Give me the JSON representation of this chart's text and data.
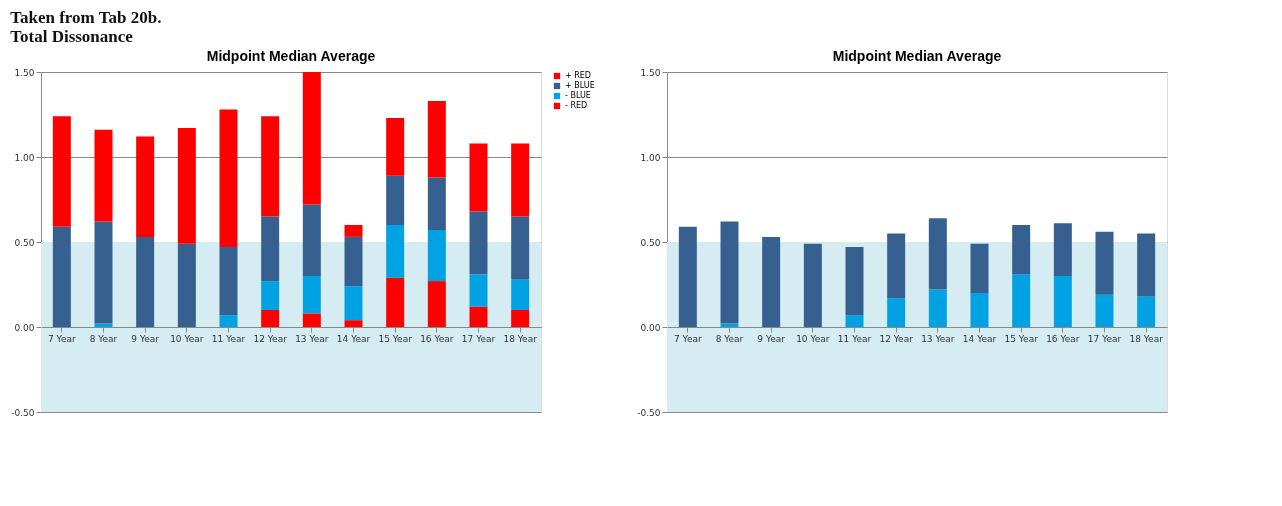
{
  "chart_data": [
    {
      "type": "bar",
      "title": "Midpoint Median Average",
      "stacked": true,
      "grid": "y",
      "legend": "right",
      "annotations": [
        "Taken from Tab 20b.",
        "Total Dissonance"
      ],
      "categories": [
        "7 Year",
        "8 Year",
        "9 Year",
        "10 Year",
        "11 Year",
        "12 Year",
        "13 Year",
        "14 Year",
        "15 Year",
        "16 Year",
        "17 Year",
        "18 Year"
      ],
      "ylim": [
        -0.5,
        1.5
      ],
      "yticks": [
        {
          "value": -0.5,
          "label": "-0.50"
        },
        {
          "value": 0,
          "label": "0.00"
        },
        {
          "value": 0.5,
          "label": "0.50"
        },
        {
          "value": 1,
          "label": "1.00"
        },
        {
          "value": 1.5,
          "label": "1.50"
        }
      ],
      "bands": [
        {
          "axis": "y",
          "from": -0.5,
          "to": 0.5,
          "color": "#d5ecf3"
        }
      ],
      "series": [
        {
          "name": "- RED",
          "color": "#ff0000",
          "values": [
            0,
            0,
            0,
            0,
            0,
            0.1,
            0.08,
            0.04,
            0.29,
            0.27,
            0.12,
            0.1
          ]
        },
        {
          "name": "- BLUE",
          "color": "#00a2e3",
          "values": [
            0,
            0.02,
            0,
            0,
            0.07,
            0.17,
            0.22,
            0.2,
            0.31,
            0.3,
            0.19,
            0.18
          ]
        },
        {
          "name": "+ BLUE",
          "color": "#35608f",
          "values": [
            0.59,
            0.6,
            0.53,
            0.49,
            0.4,
            0.38,
            0.42,
            0.29,
            0.29,
            0.31,
            0.37,
            0.37
          ]
        },
        {
          "name": "+ RED",
          "color": "#ff0000",
          "values": [
            0.65,
            0.54,
            0.59,
            0.68,
            0.81,
            0.59,
            0.78,
            0.07,
            0.34,
            0.45,
            0.4,
            0.43
          ]
        }
      ]
    },
    {
      "type": "bar",
      "title": "Midpoint Median Average",
      "stacked": true,
      "grid": "y",
      "categories": [
        "7 Year",
        "8 Year",
        "9 Year",
        "10 Year",
        "11 Year",
        "12 Year",
        "13 Year",
        "14 Year",
        "15 Year",
        "16 Year",
        "17 Year",
        "18 Year"
      ],
      "ylim": [
        -0.5,
        1.5
      ],
      "yticks": [
        {
          "value": -0.5,
          "label": "-0.50"
        },
        {
          "value": 0,
          "label": "0.00"
        },
        {
          "value": 0.5,
          "label": "0.50"
        },
        {
          "value": 1,
          "label": "1.00"
        },
        {
          "value": 1.5,
          "label": "1.50"
        }
      ],
      "bands": [
        {
          "axis": "y",
          "from": -0.5,
          "to": 0.5,
          "color": "#d5ecf3"
        }
      ],
      "series": [
        {
          "color": "#00a2e3",
          "values": [
            0,
            0.02,
            0,
            0,
            0.07,
            0.17,
            0.22,
            0.2,
            0.31,
            0.3,
            0.19,
            0.18
          ]
        },
        {
          "color": "#35608f",
          "values": [
            0.59,
            0.6,
            0.53,
            0.49,
            0.4,
            0.38,
            0.42,
            0.29,
            0.29,
            0.31,
            0.37,
            0.37
          ]
        }
      ]
    }
  ]
}
